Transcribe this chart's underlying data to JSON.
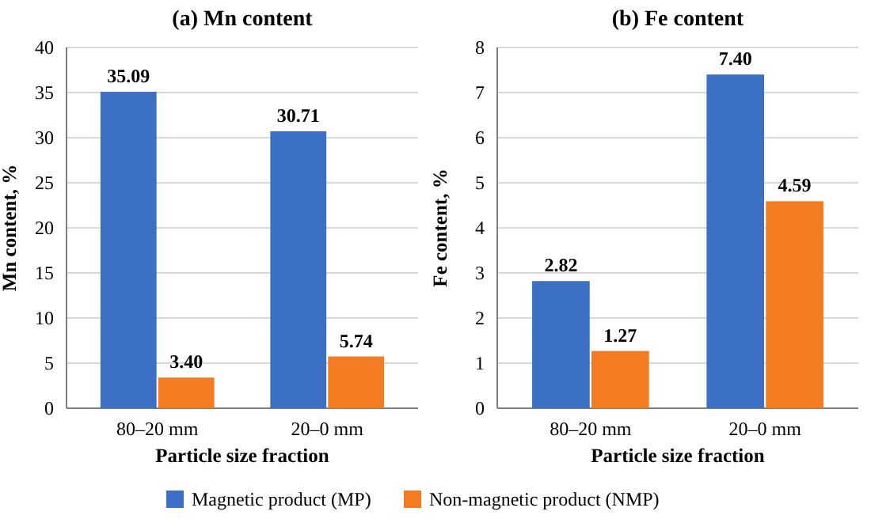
{
  "chart_data": [
    {
      "type": "bar",
      "title": "(a) Mn content",
      "xlabel": "Particle size fraction",
      "ylabel": "Mn content, %",
      "categories": [
        "80–20 mm",
        "20–0 mm"
      ],
      "series": [
        {
          "name": "Magnetic product (MP)",
          "color": "#3b70c4",
          "values": [
            35.09,
            30.71
          ]
        },
        {
          "name": "Non-magnetic product (NMP)",
          "color": "#f47b20",
          "values": [
            3.4,
            5.74
          ]
        }
      ],
      "value_labels": [
        [
          "35.09",
          "30.71"
        ],
        [
          "3.40",
          "5.74"
        ]
      ],
      "ylim": [
        0,
        40
      ],
      "yticks": [
        0,
        5,
        10,
        15,
        20,
        25,
        30,
        35,
        40
      ],
      "grid": "y",
      "legend": "bottom"
    },
    {
      "type": "bar",
      "title": "(b) Fe content",
      "xlabel": "Particle size fraction",
      "ylabel": "Fe content, %",
      "categories": [
        "80–20 mm",
        "20–0 mm"
      ],
      "series": [
        {
          "color": "#3b70c4",
          "values": [
            2.82,
            7.4
          ]
        },
        {
          "color": "#f47b20",
          "values": [
            1.27,
            4.59
          ]
        }
      ],
      "value_labels": [
        [
          "2.82",
          "7.40"
        ],
        [
          "1.27",
          "4.59"
        ]
      ],
      "ylim": [
        0,
        8
      ],
      "yticks": [
        0,
        1,
        2,
        3,
        4,
        5,
        6,
        7,
        8
      ],
      "grid": "y"
    }
  ]
}
